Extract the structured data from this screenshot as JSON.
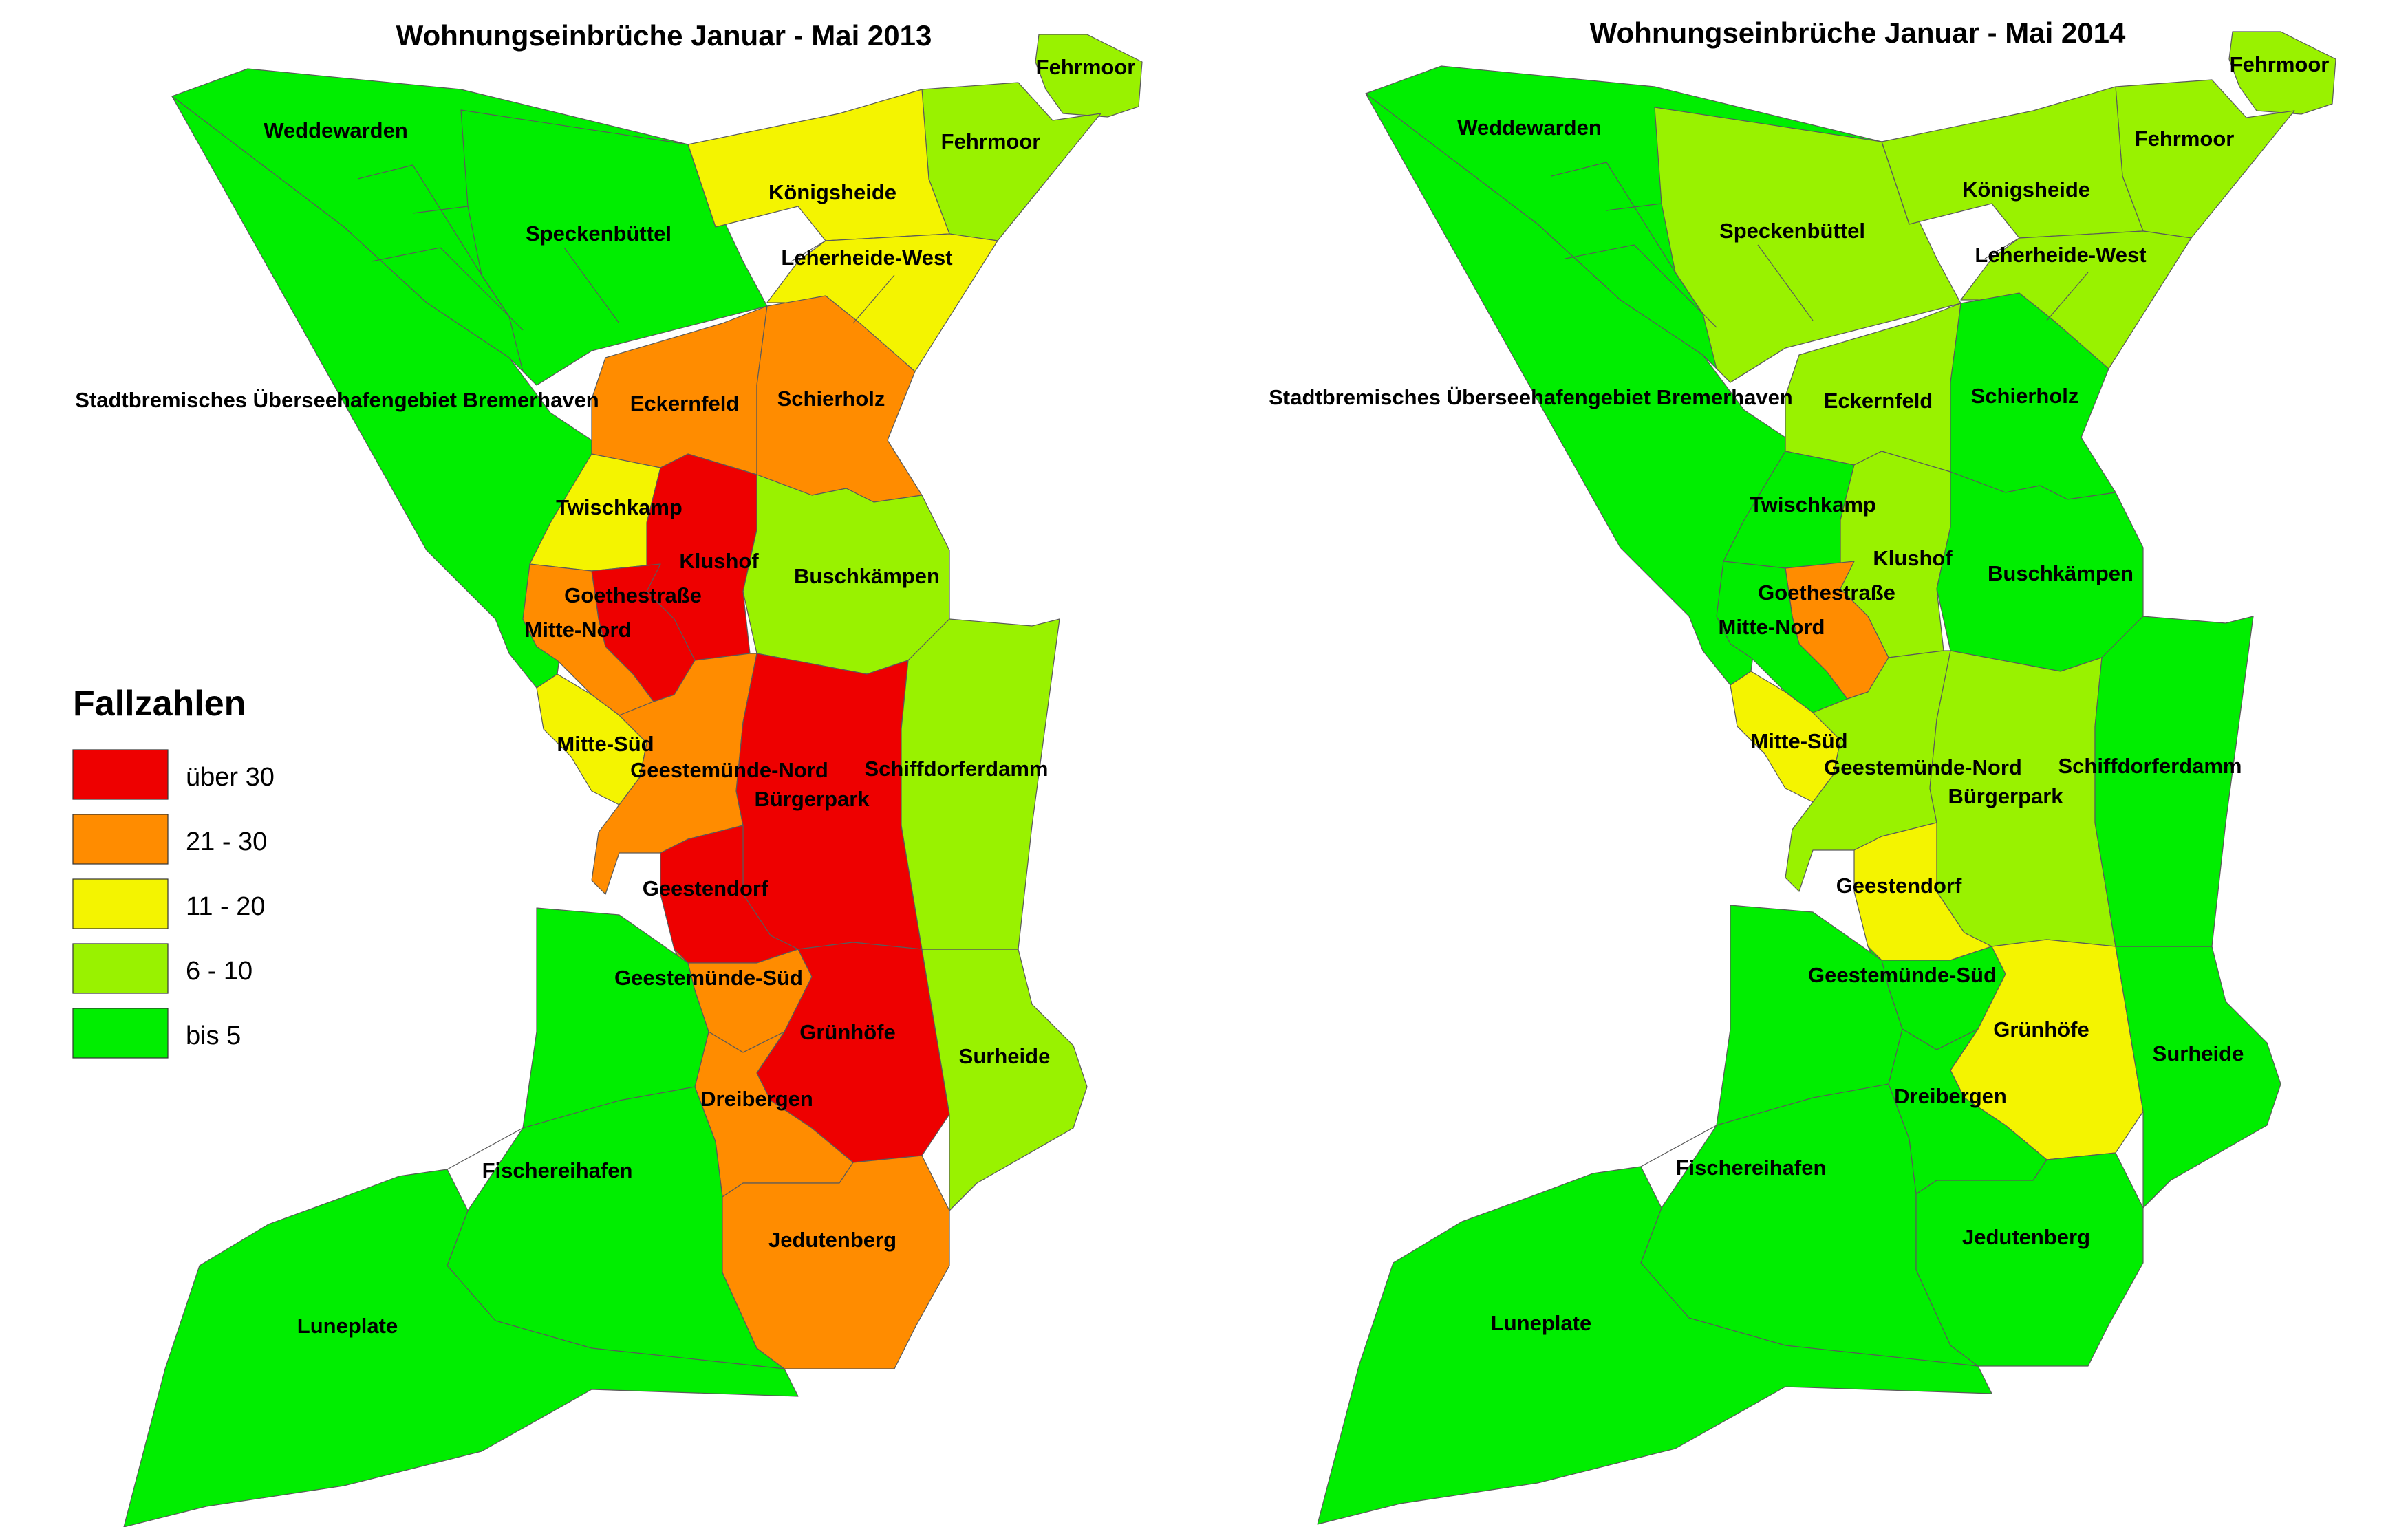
{
  "colors": {
    "ueber30": "#ee0000",
    "c21_30": "#ff8c00",
    "c11_20": "#f4f400",
    "c6_10": "#99f200",
    "bis5": "#00ee00"
  },
  "legend": {
    "title": "Fallzahlen",
    "items": [
      {
        "key": "ueber30",
        "label": "über 30"
      },
      {
        "key": "c21_30",
        "label": "21 - 30"
      },
      {
        "key": "c11_20",
        "label": "11 - 20"
      },
      {
        "key": "c6_10",
        "label": "6 - 10"
      },
      {
        "key": "bis5",
        "label": "bis 5"
      }
    ]
  },
  "maps": [
    {
      "title": "Wohnungseinbrüche Januar - Mai 2013",
      "districts": {
        "fehrmoor_top": {
          "name": "Fehrmoor",
          "cls": "c6_10"
        },
        "weddewarden": {
          "name": "Weddewarden",
          "cls": "bis5"
        },
        "fehrmoor": {
          "name": "Fehrmoor",
          "cls": "c6_10"
        },
        "koenigsheide": {
          "name": "Königsheide",
          "cls": "c11_20"
        },
        "speckenbuettel": {
          "name": "Speckenbüttel",
          "cls": "bis5"
        },
        "leherheide_west": {
          "name": "Leherheide-West",
          "cls": "c11_20"
        },
        "ueberseehafen": {
          "name": "Stadtbremisches Überseehafengebiet Bremerhaven",
          "cls": "bis5"
        },
        "eckernfeld": {
          "name": "Eckernfeld",
          "cls": "c21_30"
        },
        "schierholz": {
          "name": "Schierholz",
          "cls": "c21_30"
        },
        "twischkamp": {
          "name": "Twischkamp",
          "cls": "c11_20"
        },
        "klushof": {
          "name": "Klushof",
          "cls": "ueber30"
        },
        "goethestrasse": {
          "name": "Goethestraße",
          "cls": "ueber30"
        },
        "buschkaempen": {
          "name": "Buschkämpen",
          "cls": "c6_10"
        },
        "mitte_nord": {
          "name": "Mitte-Nord",
          "cls": "c21_30"
        },
        "mitte_sued": {
          "name": "Mitte-Süd",
          "cls": "c11_20"
        },
        "geestemuende_nord": {
          "name": "Geestemünde-Nord",
          "cls": "c21_30"
        },
        "schiffdorferdamm": {
          "name": "Schiffdorferdamm",
          "cls": "c6_10"
        },
        "buergerpark": {
          "name": "Bürgerpark",
          "cls": "ueber30"
        },
        "geestendorf": {
          "name": "Geestendorf",
          "cls": "ueber30"
        },
        "geestemuende_sued": {
          "name": "Geestemünde-Süd",
          "cls": "c21_30"
        },
        "gruenhoefe": {
          "name": "Grünhöfe",
          "cls": "ueber30"
        },
        "surheide": {
          "name": "Surheide",
          "cls": "c6_10"
        },
        "dreibergen": {
          "name": "Dreibergen",
          "cls": "c21_30"
        },
        "fischereihafen": {
          "name": "Fischereihafen",
          "cls": "bis5"
        },
        "jedutenberg": {
          "name": "Jedutenberg",
          "cls": "c21_30"
        },
        "luneplate": {
          "name": "Luneplate",
          "cls": "bis5"
        }
      }
    },
    {
      "title": "Wohnungseinbrüche Januar - Mai 2014",
      "districts": {
        "fehrmoor_top": {
          "name": "Fehrmoor",
          "cls": "c6_10"
        },
        "weddewarden": {
          "name": "Weddewarden",
          "cls": "bis5"
        },
        "fehrmoor": {
          "name": "Fehrmoor",
          "cls": "c6_10"
        },
        "koenigsheide": {
          "name": "Königsheide",
          "cls": "c6_10"
        },
        "speckenbuettel": {
          "name": "Speckenbüttel",
          "cls": "c6_10"
        },
        "leherheide_west": {
          "name": "Leherheide-West",
          "cls": "c6_10"
        },
        "ueberseehafen": {
          "name": "Stadtbremisches Überseehafengebiet Bremerhaven",
          "cls": "bis5"
        },
        "eckernfeld": {
          "name": "Eckernfeld",
          "cls": "c6_10"
        },
        "schierholz": {
          "name": "Schierholz",
          "cls": "bis5"
        },
        "twischkamp": {
          "name": "Twischkamp",
          "cls": "bis5"
        },
        "klushof": {
          "name": "Klushof",
          "cls": "c6_10"
        },
        "goethestrasse": {
          "name": "Goethestraße",
          "cls": "c21_30"
        },
        "buschkaempen": {
          "name": "Buschkämpen",
          "cls": "bis5"
        },
        "mitte_nord": {
          "name": "Mitte-Nord",
          "cls": "bis5"
        },
        "mitte_sued": {
          "name": "Mitte-Süd",
          "cls": "c11_20"
        },
        "geestemuende_nord": {
          "name": "Geestemünde-Nord",
          "cls": "c6_10"
        },
        "schiffdorferdamm": {
          "name": "Schiffdorferdamm",
          "cls": "bis5"
        },
        "buergerpark": {
          "name": "Bürgerpark",
          "cls": "c6_10"
        },
        "geestendorf": {
          "name": "Geestendorf",
          "cls": "c11_20"
        },
        "geestemuende_sued": {
          "name": "Geestemünde-Süd",
          "cls": "bis5"
        },
        "gruenhoefe": {
          "name": "Grünhöfe",
          "cls": "c11_20"
        },
        "surheide": {
          "name": "Surheide",
          "cls": "bis5"
        },
        "dreibergen": {
          "name": "Dreibergen",
          "cls": "bis5"
        },
        "fischereihafen": {
          "name": "Fischereihafen",
          "cls": "bis5"
        },
        "jedutenberg": {
          "name": "Jedutenberg",
          "cls": "bis5"
        },
        "luneplate": {
          "name": "Luneplate",
          "cls": "bis5"
        }
      }
    }
  ]
}
